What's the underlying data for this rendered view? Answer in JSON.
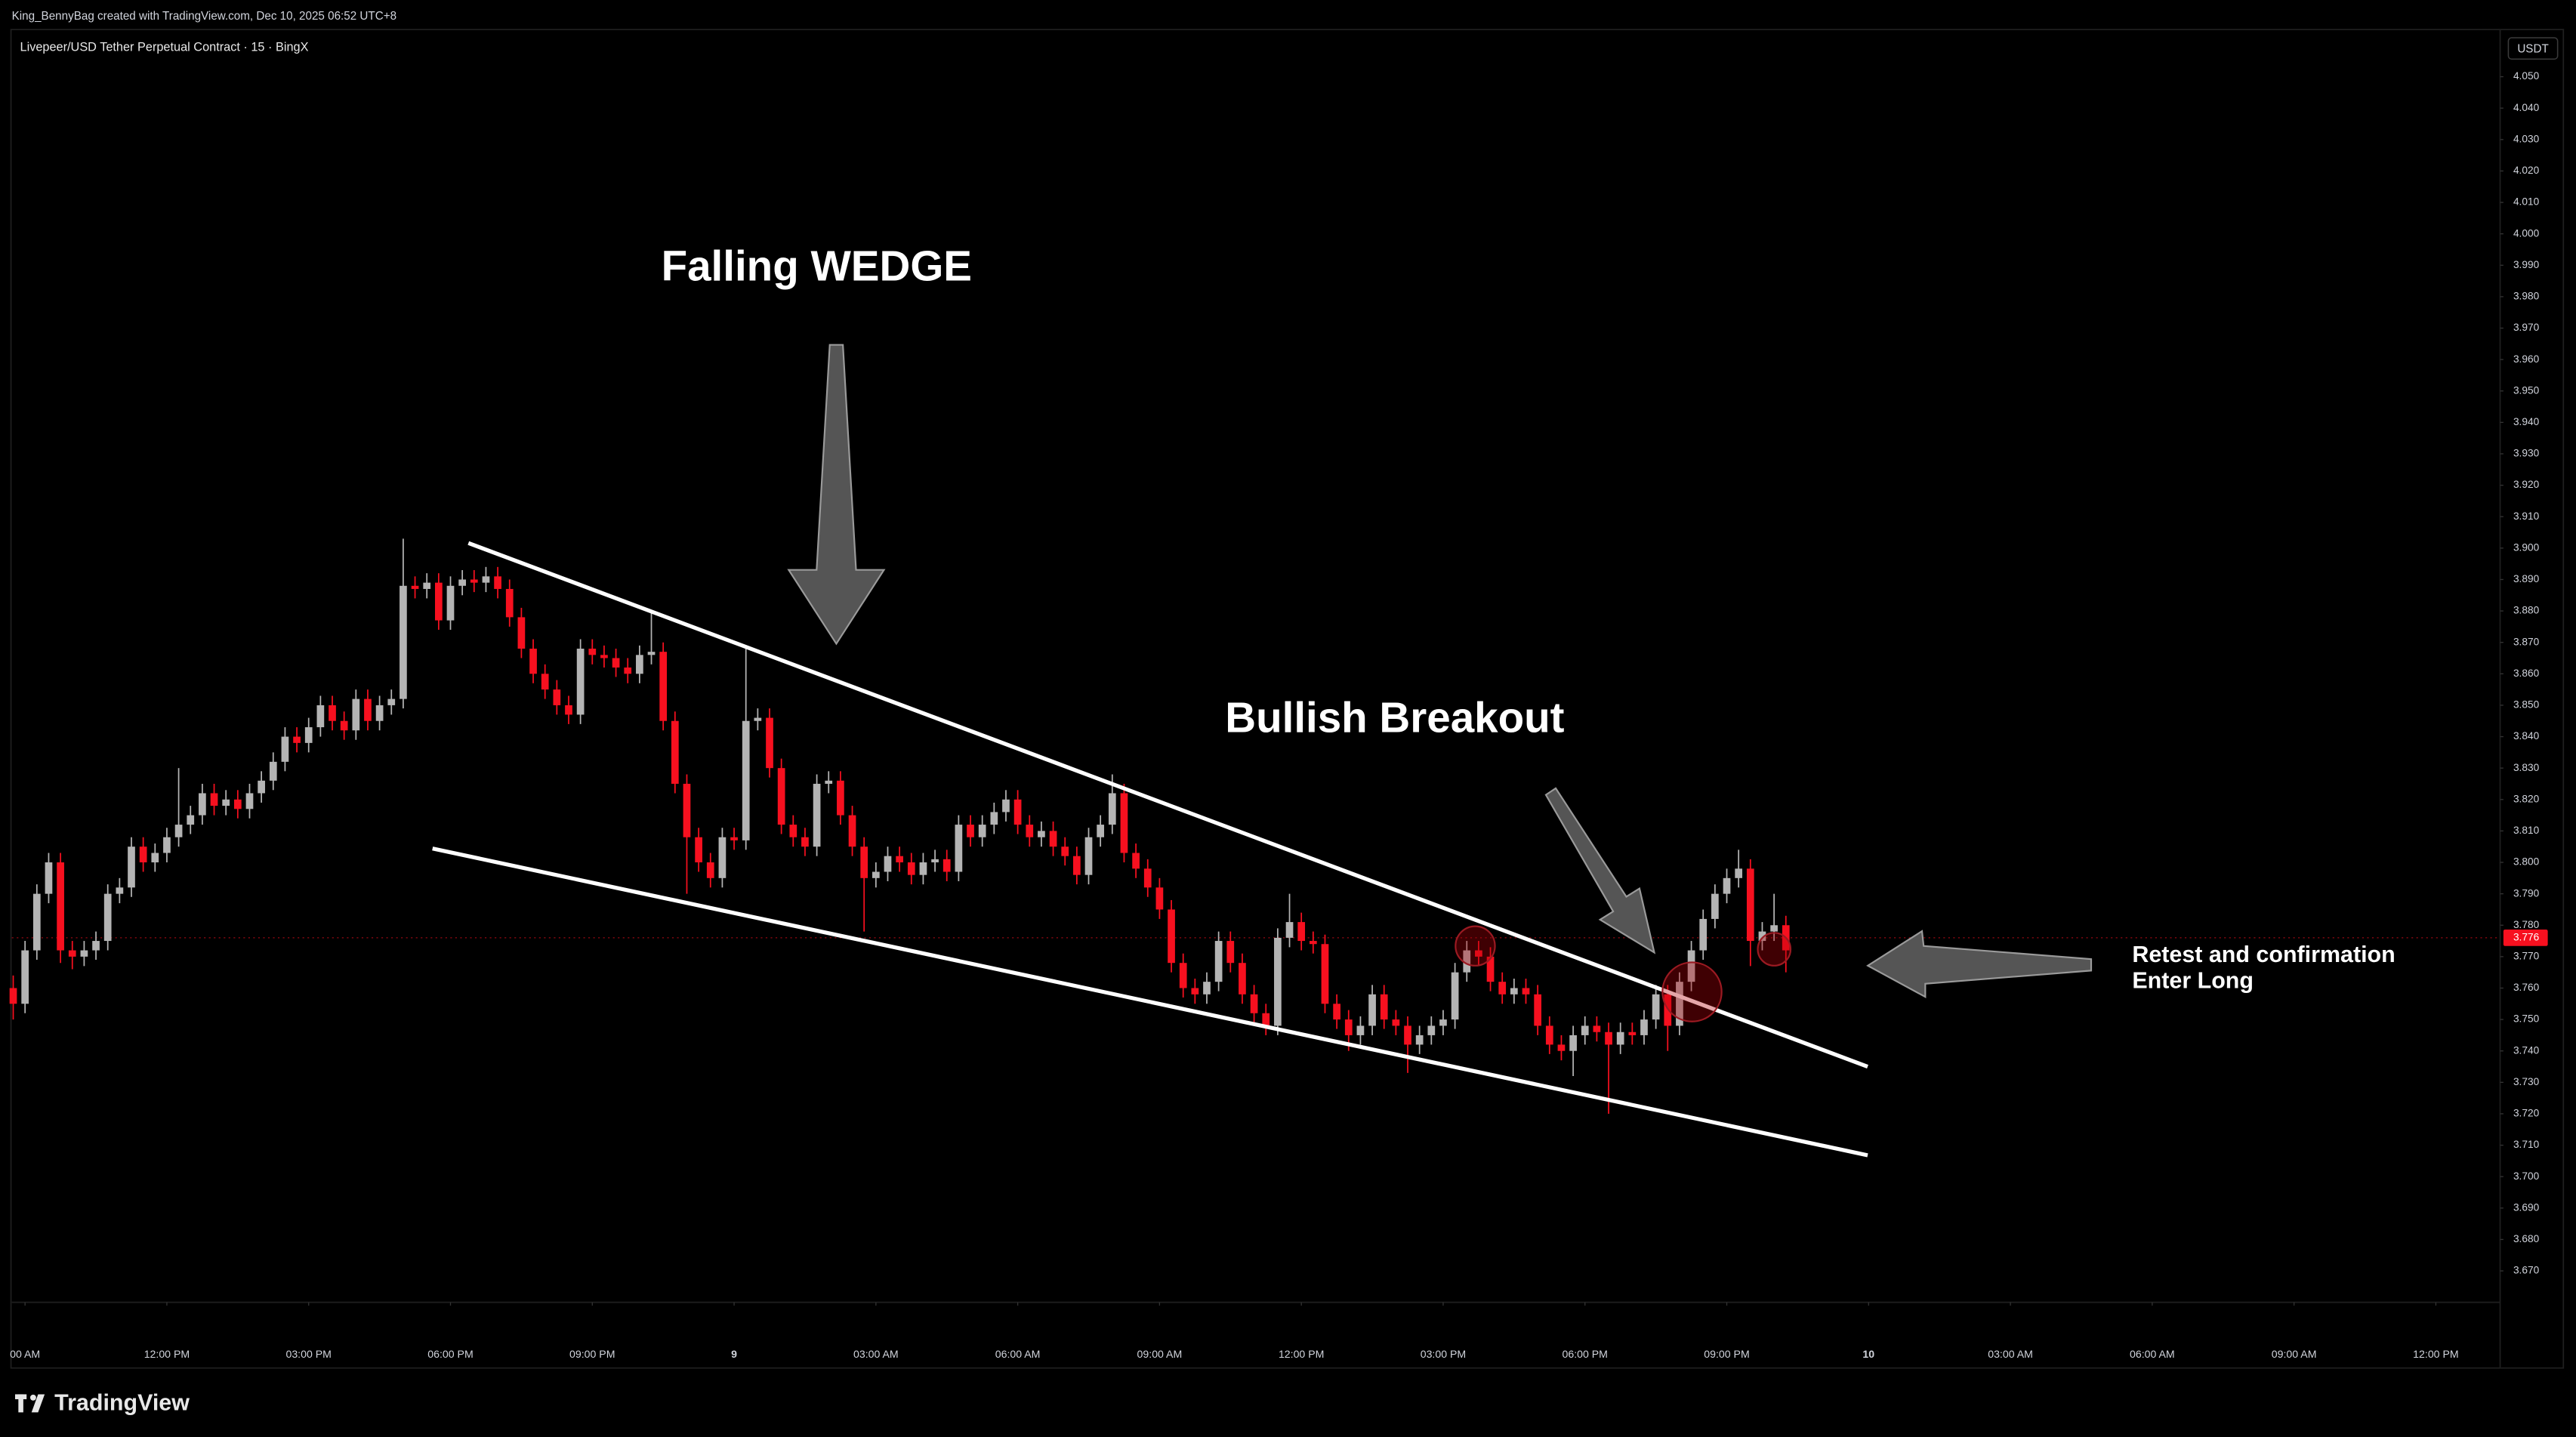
{
  "chart_data": {
    "type": "candlestick",
    "header": "King_BennyBag created with TradingView.com, Dec 10, 2025 06:52 UTC+8",
    "title": "Livepeer/USD Tether Perpetual Contract · 15 · BingX",
    "currency": "USDT",
    "watermark": "TradingView",
    "annotations": [
      "Falling WEDGE",
      "Bullish Breakout",
      "Retest and confirmation",
      "Enter Long"
    ],
    "up_color": "#b4b4b4",
    "down_color": "#f7101f",
    "line_color": "#ffffff",
    "last_price": 3.776,
    "xlim": [
      8.72,
      61.36
    ],
    "xticks": [
      {
        "value": 9,
        "label": "00 AM"
      },
      {
        "value": 12,
        "label": "12:00 PM"
      },
      {
        "value": 15,
        "label": "03:00 PM"
      },
      {
        "value": 18,
        "label": "06:00 PM"
      },
      {
        "value": 21,
        "label": "09:00 PM"
      },
      {
        "value": 24,
        "label": "9"
      },
      {
        "value": 27,
        "label": "03:00 AM"
      },
      {
        "value": 30,
        "label": "06:00 AM"
      },
      {
        "value": 33,
        "label": "09:00 AM"
      },
      {
        "value": 36,
        "label": "12:00 PM"
      },
      {
        "value": 39,
        "label": "03:00 PM"
      },
      {
        "value": 42,
        "label": "06:00 PM"
      },
      {
        "value": 45,
        "label": "09:00 PM"
      },
      {
        "value": 48,
        "label": "10"
      },
      {
        "value": 51,
        "label": "03:00 AM"
      },
      {
        "value": 54,
        "label": "06:00 AM"
      },
      {
        "value": 57,
        "label": "09:00 AM"
      },
      {
        "value": 60,
        "label": "12:00 PM"
      }
    ],
    "ylim": [
      3.66,
      4.065
    ],
    "yticks": [
      {
        "value": 4.05,
        "label": "4.050"
      },
      {
        "value": 4.04,
        "label": "4.040"
      },
      {
        "value": 4.03,
        "label": "4.030"
      },
      {
        "value": 4.02,
        "label": "4.020"
      },
      {
        "value": 4.01,
        "label": "4.010"
      },
      {
        "value": 4,
        "label": "4.000"
      },
      {
        "value": 3.99,
        "label": "3.990"
      },
      {
        "value": 3.98,
        "label": "3.980"
      },
      {
        "value": 3.97,
        "label": "3.970"
      },
      {
        "value": 3.96,
        "label": "3.960"
      },
      {
        "value": 3.95,
        "label": "3.950"
      },
      {
        "value": 3.94,
        "label": "3.940"
      },
      {
        "value": 3.93,
        "label": "3.930"
      },
      {
        "value": 3.92,
        "label": "3.920"
      },
      {
        "value": 3.91,
        "label": "3.910"
      },
      {
        "value": 3.9,
        "label": "3.900"
      },
      {
        "value": 3.89,
        "label": "3.890"
      },
      {
        "value": 3.88,
        "label": "3.880"
      },
      {
        "value": 3.87,
        "label": "3.870"
      },
      {
        "value": 3.86,
        "label": "3.860"
      },
      {
        "value": 3.85,
        "label": "3.850"
      },
      {
        "value": 3.84,
        "label": "3.840"
      },
      {
        "value": 3.83,
        "label": "3.830"
      },
      {
        "value": 3.82,
        "label": "3.820"
      },
      {
        "value": 3.81,
        "label": "3.810"
      },
      {
        "value": 3.8,
        "label": "3.800"
      },
      {
        "value": 3.79,
        "label": "3.790"
      },
      {
        "value": 3.78,
        "label": "3.780"
      },
      {
        "value": 3.77,
        "label": "3.770"
      },
      {
        "value": 3.76,
        "label": "3.760"
      },
      {
        "value": 3.75,
        "label": "3.750"
      },
      {
        "value": 3.74,
        "label": "3.740"
      },
      {
        "value": 3.73,
        "label": "3.730"
      },
      {
        "value": 3.72,
        "label": "3.720"
      },
      {
        "value": 3.71,
        "label": "3.710"
      },
      {
        "value": 3.7,
        "label": "3.700"
      },
      {
        "value": 3.69,
        "label": "3.690"
      },
      {
        "value": 3.68,
        "label": "3.680"
      },
      {
        "value": 3.67,
        "label": "3.670"
      }
    ],
    "trendlines": [
      {
        "x": [
          18.38,
          47.98
        ],
        "y": [
          3.9016,
          3.735
        ]
      },
      {
        "x": [
          17.62,
          47.98
        ],
        "y": [
          3.8044,
          3.7068
        ]
      }
    ],
    "x": [
      8.75,
      9,
      9.25,
      9.5,
      9.75,
      10,
      10.25,
      10.5,
      10.75,
      11,
      11.25,
      11.5,
      11.75,
      12,
      12.25,
      12.5,
      12.75,
      13,
      13.25,
      13.5,
      13.75,
      14,
      14.25,
      14.5,
      14.75,
      15,
      15.25,
      15.5,
      15.75,
      16,
      16.25,
      16.5,
      16.75,
      17,
      17.25,
      17.5,
      17.75,
      18,
      18.25,
      18.5,
      18.75,
      19,
      19.25,
      19.5,
      19.75,
      20,
      20.25,
      20.5,
      20.75,
      21,
      21.25,
      21.5,
      21.75,
      22,
      22.25,
      22.5,
      22.75,
      23,
      23.25,
      23.5,
      23.75,
      24,
      24.25,
      24.5,
      24.75,
      25,
      25.25,
      25.5,
      25.75,
      26,
      26.25,
      26.5,
      26.75,
      27,
      27.25,
      27.5,
      27.75,
      28,
      28.25,
      28.5,
      28.75,
      29,
      29.25,
      29.5,
      29.75,
      30,
      30.25,
      30.5,
      30.75,
      31,
      31.25,
      31.5,
      31.75,
      32,
      32.25,
      32.5,
      32.75,
      33,
      33.25,
      33.5,
      33.75,
      34,
      34.25,
      34.5,
      34.75,
      35,
      35.25,
      35.5,
      35.75,
      36,
      36.25,
      36.5,
      36.75,
      37,
      37.25,
      37.5,
      37.75,
      38,
      38.25,
      38.5,
      38.75,
      39,
      39.25,
      39.5,
      39.75,
      40,
      40.25,
      40.5,
      40.75,
      41,
      41.25,
      41.5,
      41.75,
      42,
      42.25,
      42.5,
      42.75,
      43,
      43.25,
      43.5,
      43.75,
      44,
      44.25,
      44.5,
      44.75,
      45,
      45.25,
      45.5,
      45.75,
      46,
      46.25
    ],
    "ohlc": [
      [
        3.76,
        3.764,
        3.75,
        3.755
      ],
      [
        3.755,
        3.775,
        3.752,
        3.772
      ],
      [
        3.772,
        3.793,
        3.769,
        3.79
      ],
      [
        3.79,
        3.803,
        3.787,
        3.8
      ],
      [
        3.8,
        3.803,
        3.768,
        3.772
      ],
      [
        3.772,
        3.775,
        3.766,
        3.77
      ],
      [
        3.77,
        3.775,
        3.767,
        3.772
      ],
      [
        3.772,
        3.778,
        3.769,
        3.775
      ],
      [
        3.775,
        3.793,
        3.772,
        3.79
      ],
      [
        3.79,
        3.795,
        3.787,
        3.792
      ],
      [
        3.792,
        3.808,
        3.789,
        3.805
      ],
      [
        3.805,
        3.808,
        3.797,
        3.8
      ],
      [
        3.8,
        3.806,
        3.797,
        3.803
      ],
      [
        3.803,
        3.811,
        3.8,
        3.808
      ],
      [
        3.808,
        3.83,
        3.805,
        3.812
      ],
      [
        3.812,
        3.818,
        3.809,
        3.815
      ],
      [
        3.815,
        3.825,
        3.812,
        3.822
      ],
      [
        3.822,
        3.825,
        3.815,
        3.818
      ],
      [
        3.818,
        3.823,
        3.815,
        3.82
      ],
      [
        3.82,
        3.823,
        3.814,
        3.817
      ],
      [
        3.817,
        3.825,
        3.814,
        3.822
      ],
      [
        3.822,
        3.829,
        3.819,
        3.826
      ],
      [
        3.826,
        3.835,
        3.823,
        3.832
      ],
      [
        3.832,
        3.843,
        3.829,
        3.84
      ],
      [
        3.84,
        3.843,
        3.835,
        3.838
      ],
      [
        3.838,
        3.846,
        3.835,
        3.843
      ],
      [
        3.843,
        3.853,
        3.84,
        3.85
      ],
      [
        3.85,
        3.853,
        3.842,
        3.845
      ],
      [
        3.845,
        3.848,
        3.839,
        3.842
      ],
      [
        3.842,
        3.855,
        3.839,
        3.852
      ],
      [
        3.852,
        3.855,
        3.842,
        3.845
      ],
      [
        3.845,
        3.853,
        3.842,
        3.85
      ],
      [
        3.85,
        3.855,
        3.847,
        3.852
      ],
      [
        3.852,
        3.903,
        3.849,
        3.888
      ],
      [
        3.888,
        3.891,
        3.884,
        3.887
      ],
      [
        3.887,
        3.892,
        3.884,
        3.889
      ],
      [
        3.889,
        3.892,
        3.874,
        3.877
      ],
      [
        3.877,
        3.891,
        3.874,
        3.888
      ],
      [
        3.888,
        3.893,
        3.885,
        3.89
      ],
      [
        3.89,
        3.893,
        3.886,
        3.889
      ],
      [
        3.889,
        3.894,
        3.886,
        3.891
      ],
      [
        3.891,
        3.894,
        3.884,
        3.887
      ],
      [
        3.887,
        3.89,
        3.875,
        3.878
      ],
      [
        3.878,
        3.881,
        3.865,
        3.868
      ],
      [
        3.868,
        3.871,
        3.857,
        3.86
      ],
      [
        3.86,
        3.863,
        3.852,
        3.855
      ],
      [
        3.855,
        3.858,
        3.847,
        3.85
      ],
      [
        3.85,
        3.853,
        3.844,
        3.847
      ],
      [
        3.847,
        3.871,
        3.844,
        3.868
      ],
      [
        3.868,
        3.871,
        3.863,
        3.866
      ],
      [
        3.866,
        3.869,
        3.862,
        3.865
      ],
      [
        3.865,
        3.868,
        3.859,
        3.862
      ],
      [
        3.862,
        3.865,
        3.857,
        3.86
      ],
      [
        3.86,
        3.869,
        3.857,
        3.866
      ],
      [
        3.866,
        3.88,
        3.863,
        3.867
      ],
      [
        3.867,
        3.87,
        3.842,
        3.845
      ],
      [
        3.845,
        3.848,
        3.822,
        3.825
      ],
      [
        3.825,
        3.828,
        3.79,
        3.808
      ],
      [
        3.808,
        3.811,
        3.797,
        3.8
      ],
      [
        3.8,
        3.803,
        3.792,
        3.795
      ],
      [
        3.795,
        3.811,
        3.792,
        3.808
      ],
      [
        3.808,
        3.811,
        3.804,
        3.807
      ],
      [
        3.807,
        3.868,
        3.804,
        3.845
      ],
      [
        3.845,
        3.849,
        3.842,
        3.846
      ],
      [
        3.846,
        3.849,
        3.827,
        3.83
      ],
      [
        3.83,
        3.833,
        3.809,
        3.812
      ],
      [
        3.812,
        3.815,
        3.805,
        3.808
      ],
      [
        3.808,
        3.811,
        3.802,
        3.805
      ],
      [
        3.805,
        3.828,
        3.802,
        3.825
      ],
      [
        3.825,
        3.829,
        3.822,
        3.826
      ],
      [
        3.826,
        3.829,
        3.812,
        3.815
      ],
      [
        3.815,
        3.818,
        3.802,
        3.805
      ],
      [
        3.805,
        3.808,
        3.778,
        3.795
      ],
      [
        3.795,
        3.8,
        3.792,
        3.797
      ],
      [
        3.797,
        3.805,
        3.794,
        3.802
      ],
      [
        3.802,
        3.805,
        3.797,
        3.8
      ],
      [
        3.8,
        3.803,
        3.793,
        3.796
      ],
      [
        3.796,
        3.803,
        3.793,
        3.8
      ],
      [
        3.8,
        3.804,
        3.797,
        3.801
      ],
      [
        3.801,
        3.804,
        3.794,
        3.797
      ],
      [
        3.797,
        3.815,
        3.794,
        3.812
      ],
      [
        3.812,
        3.815,
        3.805,
        3.808
      ],
      [
        3.808,
        3.815,
        3.805,
        3.812
      ],
      [
        3.812,
        3.819,
        3.809,
        3.816
      ],
      [
        3.816,
        3.823,
        3.813,
        3.82
      ],
      [
        3.82,
        3.823,
        3.809,
        3.812
      ],
      [
        3.812,
        3.815,
        3.805,
        3.808
      ],
      [
        3.808,
        3.813,
        3.805,
        3.81
      ],
      [
        3.81,
        3.813,
        3.802,
        3.805
      ],
      [
        3.805,
        3.808,
        3.799,
        3.802
      ],
      [
        3.802,
        3.805,
        3.793,
        3.796
      ],
      [
        3.796,
        3.811,
        3.793,
        3.808
      ],
      [
        3.808,
        3.815,
        3.805,
        3.812
      ],
      [
        3.812,
        3.828,
        3.809,
        3.822
      ],
      [
        3.822,
        3.825,
        3.8,
        3.803
      ],
      [
        3.803,
        3.806,
        3.795,
        3.798
      ],
      [
        3.798,
        3.801,
        3.789,
        3.792
      ],
      [
        3.792,
        3.795,
        3.782,
        3.785
      ],
      [
        3.785,
        3.788,
        3.765,
        3.768
      ],
      [
        3.768,
        3.771,
        3.757,
        3.76
      ],
      [
        3.76,
        3.763,
        3.755,
        3.758
      ],
      [
        3.758,
        3.765,
        3.755,
        3.762
      ],
      [
        3.762,
        3.778,
        3.759,
        3.775
      ],
      [
        3.775,
        3.778,
        3.765,
        3.768
      ],
      [
        3.768,
        3.771,
        3.755,
        3.758
      ],
      [
        3.758,
        3.761,
        3.749,
        3.752
      ],
      [
        3.752,
        3.755,
        3.745,
        3.748
      ],
      [
        3.748,
        3.779,
        3.745,
        3.776
      ],
      [
        3.776,
        3.79,
        3.773,
        3.781
      ],
      [
        3.781,
        3.784,
        3.772,
        3.775
      ],
      [
        3.775,
        3.778,
        3.771,
        3.774
      ],
      [
        3.774,
        3.777,
        3.752,
        3.755
      ],
      [
        3.755,
        3.758,
        3.747,
        3.75
      ],
      [
        3.75,
        3.753,
        3.74,
        3.745
      ],
      [
        3.745,
        3.751,
        3.742,
        3.748
      ],
      [
        3.748,
        3.761,
        3.745,
        3.758
      ],
      [
        3.758,
        3.761,
        3.747,
        3.75
      ],
      [
        3.75,
        3.753,
        3.745,
        3.748
      ],
      [
        3.748,
        3.751,
        3.733,
        3.742
      ],
      [
        3.742,
        3.748,
        3.739,
        3.745
      ],
      [
        3.745,
        3.751,
        3.742,
        3.748
      ],
      [
        3.748,
        3.753,
        3.745,
        3.75
      ],
      [
        3.75,
        3.768,
        3.747,
        3.765
      ],
      [
        3.765,
        3.775,
        3.762,
        3.772
      ],
      [
        3.772,
        3.775,
        3.767,
        3.77
      ],
      [
        3.77,
        3.773,
        3.759,
        3.762
      ],
      [
        3.762,
        3.765,
        3.755,
        3.758
      ],
      [
        3.758,
        3.763,
        3.755,
        3.76
      ],
      [
        3.76,
        3.763,
        3.755,
        3.758
      ],
      [
        3.758,
        3.761,
        3.745,
        3.748
      ],
      [
        3.748,
        3.751,
        3.739,
        3.742
      ],
      [
        3.742,
        3.745,
        3.737,
        3.74
      ],
      [
        3.74,
        3.748,
        3.732,
        3.745
      ],
      [
        3.745,
        3.751,
        3.742,
        3.748
      ],
      [
        3.748,
        3.751,
        3.743,
        3.746
      ],
      [
        3.746,
        3.749,
        3.72,
        3.742
      ],
      [
        3.742,
        3.749,
        3.739,
        3.746
      ],
      [
        3.746,
        3.749,
        3.742,
        3.745
      ],
      [
        3.745,
        3.753,
        3.742,
        3.75
      ],
      [
        3.75,
        3.761,
        3.747,
        3.758
      ],
      [
        3.758,
        3.761,
        3.74,
        3.748
      ],
      [
        3.748,
        3.765,
        3.745,
        3.762
      ],
      [
        3.762,
        3.775,
        3.759,
        3.772
      ],
      [
        3.772,
        3.785,
        3.769,
        3.782
      ],
      [
        3.782,
        3.793,
        3.779,
        3.79
      ],
      [
        3.79,
        3.798,
        3.787,
        3.795
      ],
      [
        3.795,
        3.804,
        3.792,
        3.798
      ],
      [
        3.798,
        3.801,
        3.767,
        3.775
      ],
      [
        3.775,
        3.781,
        3.772,
        3.778
      ],
      [
        3.778,
        3.79,
        3.775,
        3.78
      ],
      [
        3.78,
        3.783,
        3.765,
        3.772
      ]
    ]
  }
}
